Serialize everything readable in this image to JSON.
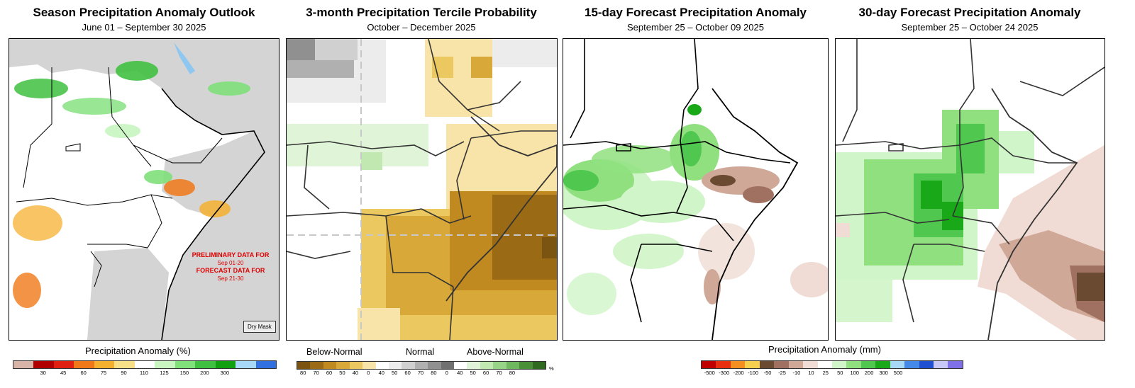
{
  "panels": [
    {
      "title": "Season Precipitation Anomaly Outlook",
      "subtitle": "June 01 – September 30 2025"
    },
    {
      "title": "3-month Precipitation Tercile Probability",
      "subtitle": "October – December 2025"
    },
    {
      "title": "15-day Forecast Precipitation Anomaly",
      "subtitle": "September 25 – October 09 2025"
    },
    {
      "title": "30-day Forecast Precipitation Anomaly",
      "subtitle": "September 25 – October 24 2025"
    }
  ],
  "notes": {
    "prelim": "PRELIMINARY DATA FOR",
    "prelim_dates": "Sep 01-20",
    "forecast": "FORECAST DATA FOR",
    "forecast_dates": "Sep 21-30",
    "dry_mask": "Dry Mask"
  },
  "legend1": {
    "title": "Precipitation Anomaly (%)",
    "colors": [
      "#d8b4a8",
      "#b00000",
      "#e02010",
      "#f07818",
      "#f5b030",
      "#f8e088",
      "#ffffff",
      "#c8f5c0",
      "#80e07a",
      "#40c040",
      "#10a010",
      "#a8d8f8",
      "#3070e0"
    ],
    "ticks": [
      "30",
      "45",
      "60",
      "75",
      "90",
      "110",
      "125",
      "150",
      "200",
      "300"
    ]
  },
  "legend2": {
    "labels": [
      "Below-Normal",
      "Normal",
      "Above-Normal"
    ],
    "colors": [
      "#7a5410",
      "#9a6a14",
      "#c08a20",
      "#d8a838",
      "#ecc860",
      "#f8e4a8",
      "#ffffff",
      "#ececec",
      "#d0d0d0",
      "#b0b0b0",
      "#909090",
      "#707070",
      "#ffffff",
      "#e0f5d8",
      "#c0e8b0",
      "#98d488",
      "#70b860",
      "#4a9038",
      "#306a20"
    ],
    "ticks": [
      "80",
      "70",
      "60",
      "50",
      "40",
      "0",
      "40",
      "50",
      "60",
      "70",
      "80",
      "0",
      "40",
      "50",
      "60",
      "70",
      "80"
    ],
    "unit": "%"
  },
  "legend3": {
    "title": "Precipitation Anomaly (mm)",
    "colors": [
      "#c00000",
      "#e83010",
      "#f59020",
      "#f8d050",
      "#6a4a30",
      "#a07060",
      "#d0a898",
      "#f0dcd4",
      "#ffffff",
      "#d0f5c8",
      "#90e080",
      "#50c850",
      "#18a818",
      "#a8d8f8",
      "#4488e8",
      "#2050d0",
      "#c8c8f8",
      "#8070e8"
    ],
    "ticks": [
      "-500",
      "-300",
      "-200",
      "-100",
      "-50",
      "-25",
      "-10",
      "10",
      "25",
      "50",
      "100",
      "200",
      "300",
      "500"
    ]
  }
}
